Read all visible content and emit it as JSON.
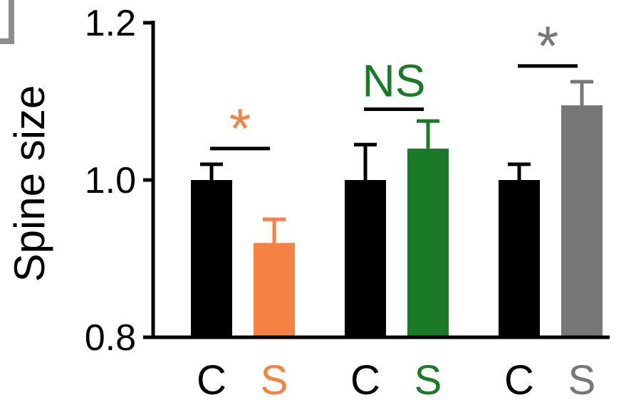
{
  "chart_data": {
    "type": "bar",
    "ylabel": "Spine size",
    "xlabel": "",
    "ylim": [
      0.8,
      1.2
    ],
    "yticks": [
      "0.8",
      "1.0",
      "1.2"
    ],
    "groups": [
      {
        "bars": [
          {
            "label": "C",
            "value": 1.0,
            "error": 0.02,
            "color": "#000000"
          },
          {
            "label": "S",
            "value": 0.92,
            "error": 0.03,
            "color": "#f58142"
          }
        ],
        "significance": {
          "label": "*",
          "color": "#f58142",
          "y": 1.04
        }
      },
      {
        "bars": [
          {
            "label": "C",
            "value": 1.0,
            "error": 0.045,
            "color": "#000000"
          },
          {
            "label": "S",
            "value": 1.04,
            "error": 0.035,
            "color": "#1a7a27"
          }
        ],
        "significance": {
          "label": "NS",
          "color": "#1a7a27",
          "y": 1.09
        }
      },
      {
        "bars": [
          {
            "label": "C",
            "value": 1.0,
            "error": 0.02,
            "color": "#000000"
          },
          {
            "label": "S",
            "value": 1.095,
            "error": 0.03,
            "color": "#777777"
          }
        ],
        "significance": {
          "label": "*",
          "color": "#777777",
          "y": 1.145
        }
      }
    ]
  }
}
